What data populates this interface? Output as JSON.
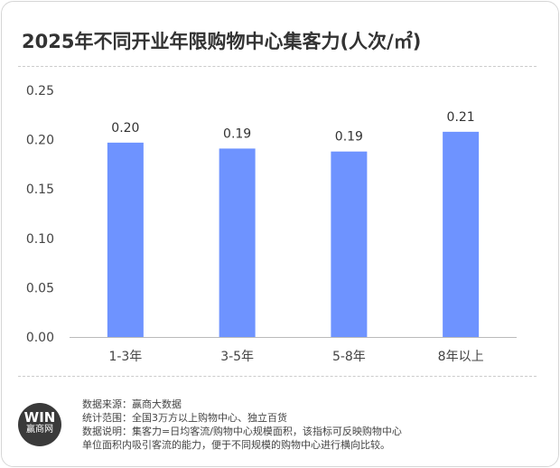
{
  "chart_data": {
    "type": "bar",
    "title": "2025年不同开业年限购物中心集客力(人次/㎡)",
    "categories": [
      "1-3年",
      "3-5年",
      "5-8年",
      "8年以上"
    ],
    "values": [
      0.197,
      0.191,
      0.188,
      0.208
    ],
    "data_labels": [
      "0.20",
      "0.19",
      "0.19",
      "0.21"
    ],
    "ylim": [
      0,
      0.25
    ],
    "yticks": [
      "0.00",
      "0.05",
      "0.10",
      "0.15",
      "0.20",
      "0.25"
    ],
    "xlabel": "",
    "ylabel": "",
    "bar_color": "#6e93ff",
    "grid": false
  },
  "footer": {
    "logo_mark": "WIN",
    "logo_text": "赢商网",
    "lines": [
      "数据来源：赢商大数据",
      "统计范围：全国3万方以上购物中心、独立百货",
      "数据说明：集客力=日均客流/购物中心规模面积，该指标可反映购物中心",
      "单位面积内吸引客流的能力，便于不同规模的购物中心进行横向比较。"
    ]
  }
}
